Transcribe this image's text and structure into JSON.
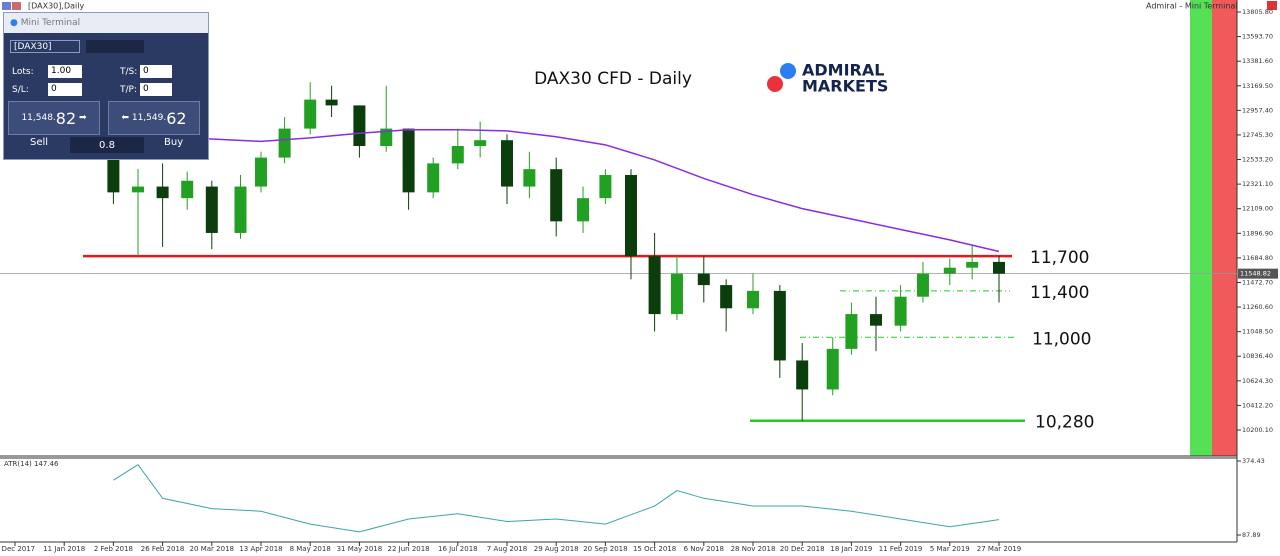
{
  "window": {
    "title": "[DAX30],Daily",
    "broker": "Admiral - Mini Terminal"
  },
  "mini_terminal": {
    "title": "Mini Terminal",
    "symbol": "[DAX30]",
    "lots_label": "Lots:",
    "lots": "1.00",
    "ts_label": "T/S:",
    "ts": "0",
    "sl_label": "S/L:",
    "sl": "0",
    "tp_label": "T/P:",
    "tp": "0",
    "sell_price_main": "11,548.",
    "sell_price_pips": "82",
    "buy_price_main": "11,549.",
    "buy_price_pips": "62",
    "sell": "Sell",
    "spread": "0.8",
    "buy": "Buy"
  },
  "logo": {
    "line1": "ADMIRAL",
    "line2": "MARKETS"
  },
  "chart_data": [
    {
      "type": "candlestick",
      "title": "DAX30 CFD - Daily",
      "xticks": [
        "5 Dec 2017",
        "11 Jan 2018",
        "2 Feb 2018",
        "26 Feb 2018",
        "20 Mar 2018",
        "13 Apr 2018",
        "8 May 2018",
        "31 May 2018",
        "22 Jun 2018",
        "16 Jul 2018",
        "7 Aug 2018",
        "29 Aug 2018",
        "20 Sep 2018",
        "15 Oct 2018",
        "6 Nov 2018",
        "28 Nov 2018",
        "20 Dec 2018",
        "18 Jan 2019",
        "11 Feb 2019",
        "5 Mar 2019",
        "27 Mar 2019"
      ],
      "x": [
        "2 Feb 2018",
        "14 Feb 2018",
        "26 Feb 2018",
        "9 Mar 2018",
        "20 Mar 2018",
        "3 Apr 2018",
        "13 Apr 2018",
        "25 Apr 2018",
        "8 May 2018",
        "18 May 2018",
        "31 May 2018",
        "12 Jun 2018",
        "22 Jun 2018",
        "4 Jul 2018",
        "16 Jul 2018",
        "26 Jul 2018",
        "7 Aug 2018",
        "17 Aug 2018",
        "29 Aug 2018",
        "10 Sep 2018",
        "20 Sep 2018",
        "3 Oct 2018",
        "15 Oct 2018",
        "25 Oct 2018",
        "6 Nov 2018",
        "16 Nov 2018",
        "28 Nov 2018",
        "10 Dec 2018",
        "20 Dec 2018",
        "7 Jan 2019",
        "18 Jan 2019",
        "30 Jan 2019",
        "11 Feb 2019",
        "21 Feb 2019",
        "5 Mar 2019",
        "15 Mar 2019",
        "27 Mar 2019"
      ],
      "open": [
        12550,
        12250,
        12300,
        12200,
        12300,
        11900,
        12300,
        12550,
        12800,
        13050,
        13000,
        12650,
        12800,
        12250,
        12500,
        12650,
        12700,
        12300,
        12450,
        12000,
        12200,
        12400,
        11700,
        11200,
        11550,
        11450,
        11250,
        11400,
        10800,
        10550,
        10900,
        11200,
        11100,
        11350,
        11550,
        11600,
        11650
      ],
      "high": [
        12700,
        12450,
        12500,
        12430,
        12350,
        12400,
        12600,
        12900,
        13200,
        13170,
        13000,
        13170,
        12800,
        12550,
        12800,
        12860,
        12750,
        12600,
        12550,
        12300,
        12450,
        12450,
        11900,
        11700,
        11700,
        11500,
        11550,
        11450,
        10950,
        11000,
        11300,
        11350,
        11450,
        11650,
        11680,
        11800,
        11700
      ],
      "low": [
        12150,
        11700,
        11780,
        12100,
        11760,
        11850,
        12250,
        12500,
        12750,
        12900,
        12550,
        12600,
        12100,
        12200,
        12450,
        12550,
        12150,
        12200,
        11870,
        11900,
        12150,
        11500,
        11050,
        11150,
        11300,
        11050,
        11200,
        10650,
        10280,
        10500,
        10850,
        10880,
        11050,
        11300,
        11450,
        11500,
        11300
      ],
      "close": [
        12250,
        12300,
        12200,
        12350,
        11900,
        12300,
        12550,
        12800,
        13050,
        13000,
        12650,
        12800,
        12250,
        12500,
        12650,
        12700,
        12300,
        12450,
        12000,
        12200,
        12400,
        11700,
        11200,
        11550,
        11450,
        11250,
        11400,
        10800,
        10550,
        10900,
        11200,
        11100,
        11350,
        11550,
        11600,
        11650,
        11548.82
      ],
      "up_color": "#22a022",
      "down_color": "#0c3d0c",
      "ma": {
        "color": "#8a2be2",
        "x": [
          "2 Feb 2018",
          "26 Feb 2018",
          "20 Mar 2018",
          "13 Apr 2018",
          "8 May 2018",
          "31 May 2018",
          "22 Jun 2018",
          "16 Jul 2018",
          "7 Aug 2018",
          "29 Aug 2018",
          "20 Sep 2018",
          "15 Oct 2018",
          "6 Nov 2018",
          "28 Nov 2018",
          "20 Dec 2018",
          "18 Jan 2019",
          "11 Feb 2019",
          "5 Mar 2019",
          "27 Mar 2019"
        ],
        "values": [
          12760,
          12740,
          12710,
          12690,
          12720,
          12760,
          12790,
          12790,
          12780,
          12730,
          12660,
          12530,
          12370,
          12230,
          12110,
          12020,
          11930,
          11840,
          11740
        ]
      },
      "current_price": {
        "value": 11548.82,
        "label": "11548.82"
      },
      "levels": [
        {
          "value": 11700,
          "label": "11,700",
          "color": "#e8161b",
          "dashed": false
        },
        {
          "value": 11400,
          "label": "11,400",
          "color": "#22cc22",
          "dashed": true
        },
        {
          "value": 11000,
          "label": "11,000",
          "color": "#22cc22",
          "dashed": true
        },
        {
          "value": 10280,
          "label": "10,280",
          "color": "#22cc22",
          "dashed": false
        }
      ],
      "ylim": [
        9975.8,
        13909.3
      ],
      "yticks": [
        {
          "value": 13805.8,
          "label": "13805.80"
        },
        {
          "value": 13593.7,
          "label": "13593.70"
        },
        {
          "value": 13381.6,
          "label": "13381.60"
        },
        {
          "value": 13169.5,
          "label": "13169.50"
        },
        {
          "value": 12957.4,
          "label": "12957.40"
        },
        {
          "value": 12745.3,
          "label": "12745.30"
        },
        {
          "value": 12533.2,
          "label": "12533.20"
        },
        {
          "value": 12321.1,
          "label": "12321.10"
        },
        {
          "value": 12109,
          "label": "12109.00"
        },
        {
          "value": 11896.9,
          "label": "11896.90"
        },
        {
          "value": 11684.8,
          "label": "11684.80"
        },
        {
          "value": 11472.7,
          "label": "11472.70"
        },
        {
          "value": 11260.6,
          "label": "11260.60"
        },
        {
          "value": 11048.5,
          "label": "11048.50"
        },
        {
          "value": 10836.4,
          "label": "10836.40"
        },
        {
          "value": 10624.3,
          "label": "10624.30"
        },
        {
          "value": 10412.2,
          "label": "10412.20"
        },
        {
          "value": 10200.1,
          "label": "10200.10"
        }
      ]
    },
    {
      "type": "line",
      "label": "ATR(14) 147.46",
      "color": "#3aa6a6",
      "x": [
        "2 Feb 2018",
        "14 Feb 2018",
        "26 Feb 2018",
        "20 Mar 2018",
        "13 Apr 2018",
        "8 May 2018",
        "31 May 2018",
        "22 Jun 2018",
        "16 Jul 2018",
        "7 Aug 2018",
        "29 Aug 2018",
        "20 Sep 2018",
        "15 Oct 2018",
        "25 Oct 2018",
        "6 Nov 2018",
        "28 Nov 2018",
        "20 Dec 2018",
        "18 Jan 2019",
        "11 Feb 2019",
        "5 Mar 2019",
        "27 Mar 2019"
      ],
      "values": [
        300,
        360,
        230,
        190,
        180,
        130,
        100,
        150,
        170,
        140,
        150,
        130,
        200,
        260,
        230,
        200,
        200,
        180,
        150,
        120,
        147.46
      ],
      "ylim": [
        60.8,
        386
      ],
      "yticks": [
        374.43,
        87.89
      ]
    }
  ]
}
